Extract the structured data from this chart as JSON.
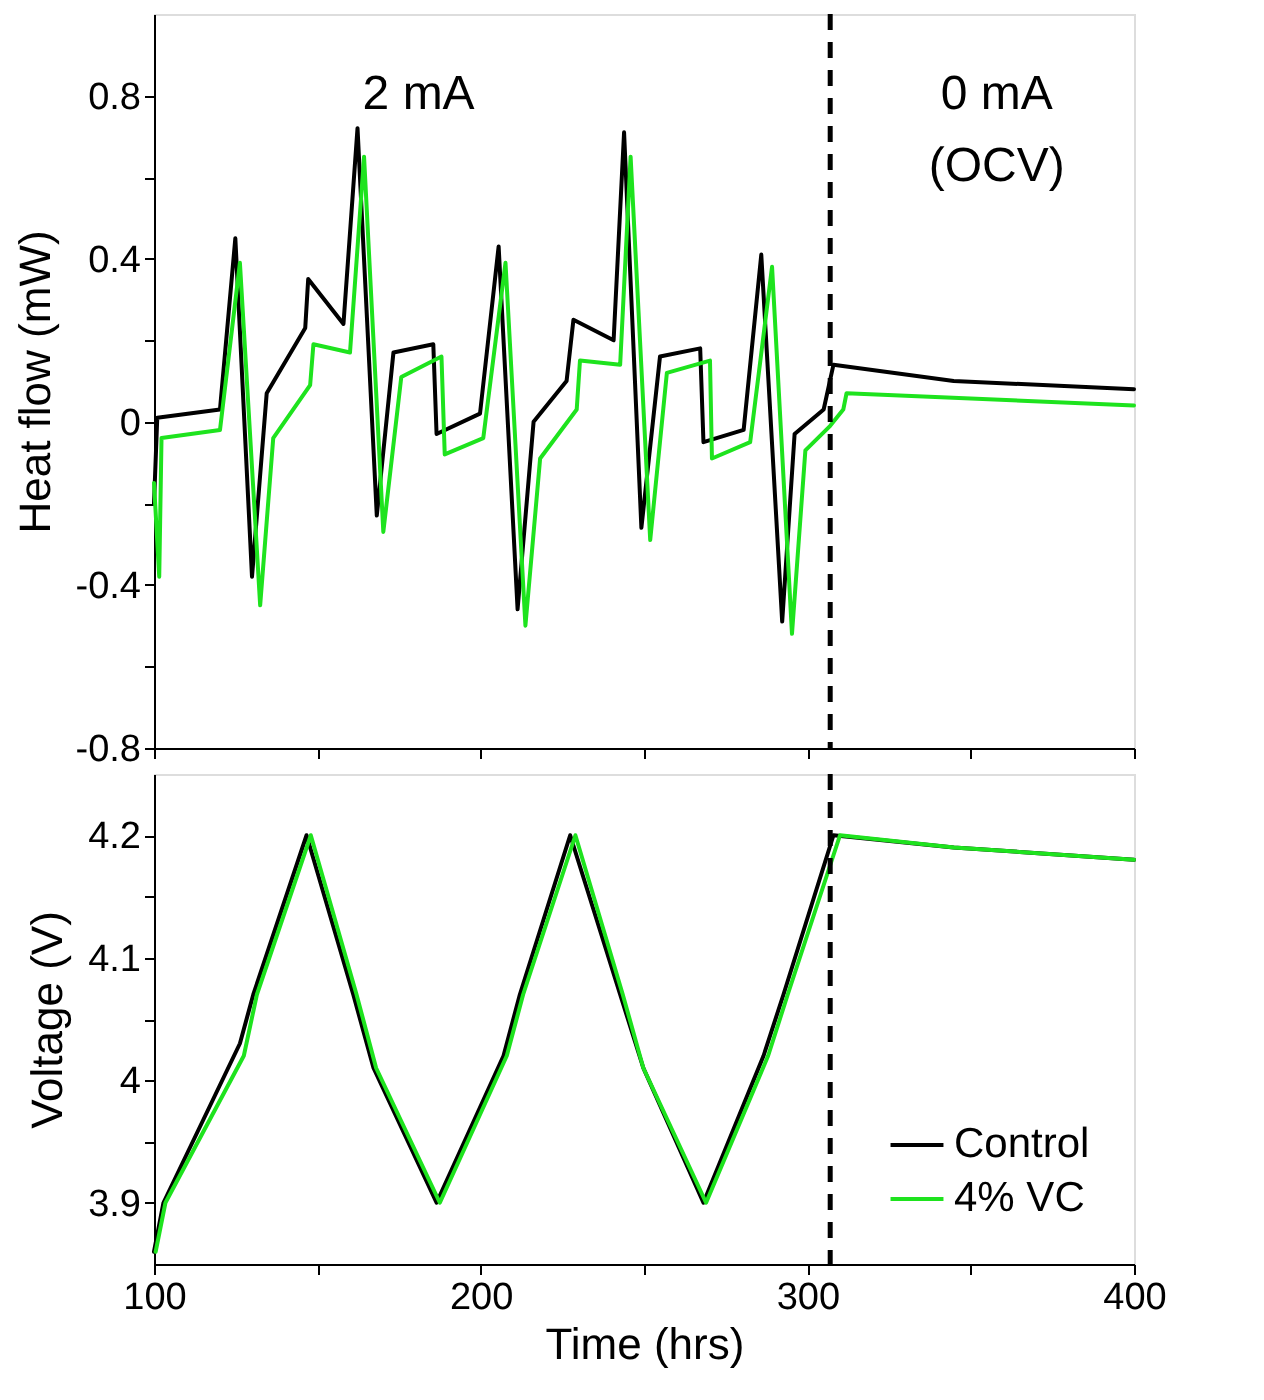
{
  "chart_data": [
    {
      "type": "line",
      "ylabel": "Heat flow (mW)",
      "xlim": [
        100,
        400
      ],
      "ylim": [
        -0.8,
        1.0
      ],
      "xticks": [
        {
          "value": 100,
          "label": null
        },
        {
          "value": 150,
          "label": null
        },
        {
          "value": 200,
          "label": null
        },
        {
          "value": 250,
          "label": null
        },
        {
          "value": 300,
          "label": null
        },
        {
          "value": 350,
          "label": null
        },
        {
          "value": 400,
          "label": null
        }
      ],
      "yticks": [
        -0.8,
        {
          "value": -0.6,
          "label": null
        },
        -0.4,
        {
          "value": -0.2,
          "label": null
        },
        0,
        {
          "value": 0.2,
          "label": null
        },
        0.4,
        {
          "value": 0.6,
          "label": null
        },
        0.8
      ],
      "tick_labels": "y",
      "grid": false,
      "line_style": "solid",
      "marker": "none",
      "annotations": [
        "2 mA",
        "0 mA\n(OCV)"
      ],
      "ref_lines": [
        {
          "axis": "x",
          "value": 307,
          "color": "#000000",
          "line_style": "dashed"
        }
      ],
      "series": [
        {
          "color": "#000000",
          "x": [
            100,
            101,
            120.2,
            124.9,
            130,
            134.5,
            146.3,
            147.2,
            158,
            162.3,
            168.2,
            173.3,
            185.5,
            186.5,
            199.8,
            205.5,
            211.3,
            216.2,
            226.3,
            228.4,
            240.7,
            243.9,
            249.2,
            254.9,
            267.2,
            268.2,
            280.5,
            285.9,
            292.3,
            296.1,
            305,
            308,
            344.8,
            400
          ],
          "values": [
            -0.2,
            0.01,
            0.03,
            0.45,
            -0.38,
            0.07,
            0.23,
            0.35,
            0.24,
            0.72,
            -0.23,
            0.17,
            0.19,
            -0.03,
            0.02,
            0.43,
            -0.46,
            0.0,
            0.1,
            0.25,
            0.2,
            0.71,
            -0.26,
            0.16,
            0.18,
            -0.05,
            -0.02,
            0.41,
            -0.49,
            -0.03,
            0.03,
            0.14,
            0.1,
            0.08
          ]
        },
        {
          "color": "#1ee31e",
          "x": [
            100,
            101.6,
            102.3,
            120.2,
            126.3,
            132.5,
            136.5,
            147.8,
            148.8,
            160,
            164.3,
            170.2,
            175.7,
            188,
            189,
            200.8,
            207.6,
            213.7,
            218.2,
            229.4,
            230.4,
            242.7,
            245.9,
            251.9,
            257,
            270.2,
            270.8,
            282.5,
            289.2,
            295.3,
            299.4,
            307,
            311,
            312,
            400
          ],
          "values": [
            -0.15,
            -0.38,
            -0.04,
            -0.02,
            0.39,
            -0.45,
            -0.04,
            0.09,
            0.19,
            0.17,
            0.65,
            -0.27,
            0.11,
            0.16,
            -0.08,
            -0.04,
            0.39,
            -0.5,
            -0.09,
            0.03,
            0.15,
            0.14,
            0.65,
            -0.29,
            0.12,
            0.15,
            -0.09,
            -0.05,
            0.38,
            -0.52,
            -0.07,
            -0.01,
            0.03,
            0.07,
            0.04
          ]
        }
      ]
    },
    {
      "type": "line",
      "xlabel": "Time (hrs)",
      "ylabel": "Voltage (V)",
      "xlim": [
        100,
        400
      ],
      "ylim": [
        3.85,
        4.25
      ],
      "xticks": [
        100,
        {
          "value": 150,
          "label": null
        },
        200,
        {
          "value": 250,
          "label": null
        },
        300,
        {
          "value": 350,
          "label": null
        },
        400
      ],
      "yticks": [
        3.9,
        {
          "value": 3.95,
          "label": null
        },
        4,
        {
          "value": 4.05,
          "label": null
        },
        4.1,
        {
          "value": 4.15,
          "label": null
        },
        4.2
      ],
      "grid": false,
      "line_style": "solid",
      "marker": "none",
      "legend": "bottom right",
      "ref_lines": [
        {
          "axis": "x",
          "value": 307,
          "color": "#000000",
          "line_style": "dashed"
        }
      ],
      "series": [
        {
          "name": "Control",
          "color": "#000000",
          "x": [
            100,
            102.9,
            126.3,
            130.4,
            146.7,
            161,
            167.2,
            186.5,
            207,
            212,
            227.4,
            242.7,
            249.8,
            268.2,
            286.6,
            292.7,
            308,
            344.8,
            400
          ],
          "values": [
            3.86,
            3.9,
            4.03,
            4.07,
            4.2,
            4.07,
            4.01,
            3.9,
            4.02,
            4.07,
            4.2,
            4.07,
            4.01,
            3.9,
            4.02,
            4.07,
            4.2,
            4.19,
            4.18
          ]
        },
        {
          "name": "4% VC",
          "color": "#1ee31e",
          "x": [
            100.5,
            103.5,
            127.5,
            131.5,
            148,
            162,
            168,
            187.5,
            208,
            213,
            229,
            243.5,
            249.8,
            269,
            288,
            294,
            310,
            345,
            400
          ],
          "values": [
            3.86,
            3.9,
            4.02,
            4.07,
            4.2,
            4.07,
            4.01,
            3.9,
            4.02,
            4.07,
            4.2,
            4.07,
            4.01,
            3.9,
            4.02,
            4.07,
            4.2,
            4.19,
            4.18
          ]
        }
      ]
    }
  ]
}
